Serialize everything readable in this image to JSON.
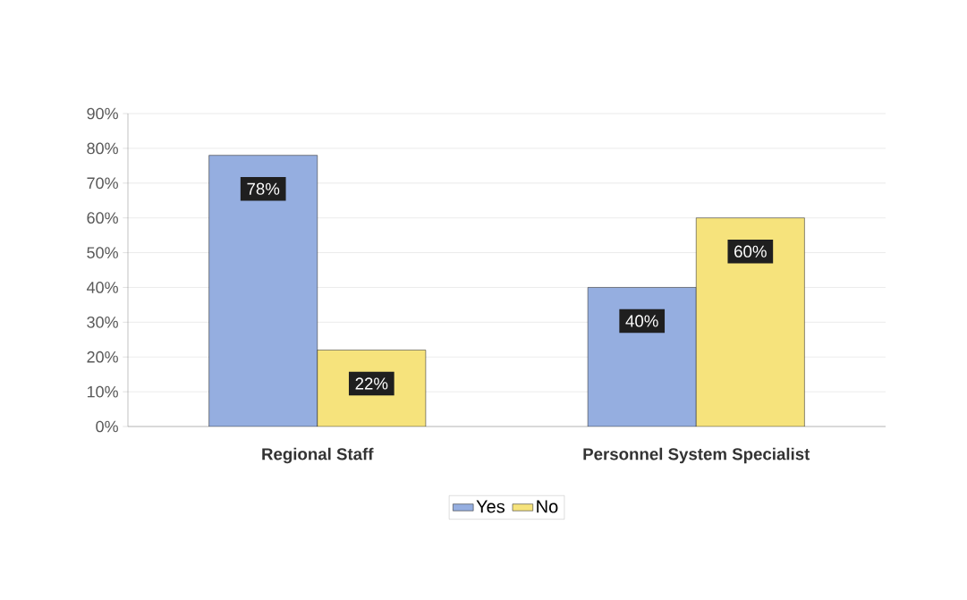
{
  "chart_data": {
    "type": "bar",
    "categories": [
      "Regional Staff",
      "Personnel System Specialist"
    ],
    "series": [
      {
        "name": "Yes",
        "color": "#95aee0",
        "values": [
          78,
          40
        ],
        "value_labels": [
          "78%",
          "40%"
        ]
      },
      {
        "name": "No",
        "color": "#f6e37c",
        "values": [
          22,
          60
        ],
        "value_labels": [
          "22%",
          "60%"
        ]
      }
    ],
    "ylim": [
      0,
      90
    ],
    "yticks": [
      {
        "value": 0,
        "label": "0%"
      },
      {
        "value": 10,
        "label": "10%"
      },
      {
        "value": 20,
        "label": "20%"
      },
      {
        "value": 30,
        "label": "30%"
      },
      {
        "value": 40,
        "label": "40%"
      },
      {
        "value": 50,
        "label": "50%"
      },
      {
        "value": 60,
        "label": "60%"
      },
      {
        "value": 70,
        "label": "70%"
      },
      {
        "value": 80,
        "label": "80%"
      },
      {
        "value": 90,
        "label": "90%"
      }
    ],
    "grid": "y",
    "legend": "bottom"
  }
}
